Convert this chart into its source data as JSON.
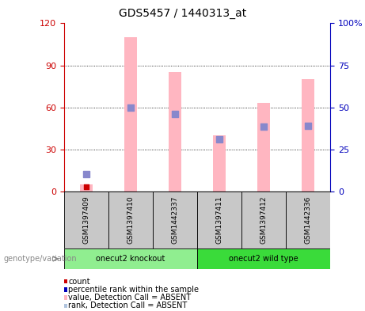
{
  "title": "GDS5457 / 1440313_at",
  "samples": [
    "GSM1397409",
    "GSM1397410",
    "GSM1442337",
    "GSM1397411",
    "GSM1397412",
    "GSM1442336"
  ],
  "pink_bars": [
    5,
    110,
    85,
    40,
    63,
    80
  ],
  "blue_squares": [
    12,
    60,
    55,
    37,
    46,
    47
  ],
  "red_dots": [
    3,
    0,
    0,
    0,
    0,
    0
  ],
  "groups": [
    {
      "label": "onecut2 knockout",
      "start": 0,
      "end": 2,
      "color": "#90EE90"
    },
    {
      "label": "onecut2 wild type",
      "start": 3,
      "end": 5,
      "color": "#3ADB3A"
    }
  ],
  "group_label": "genotype/variation",
  "ylim_left": [
    0,
    120
  ],
  "ylim_right": [
    0,
    100
  ],
  "yticks_left": [
    0,
    30,
    60,
    90,
    120
  ],
  "yticks_right": [
    0,
    25,
    50,
    75,
    100
  ],
  "ytick_labels_left": [
    "0",
    "30",
    "60",
    "90",
    "120"
  ],
  "ytick_labels_right": [
    "0",
    "25",
    "50",
    "75",
    "100%"
  ],
  "left_axis_color": "#CC0000",
  "right_axis_color": "#0000BB",
  "pink_color": "#FFB6C1",
  "blue_square_color": "#8888CC",
  "red_dot_color": "#CC0000",
  "sample_box_color": "#C8C8C8",
  "legend_items": [
    {
      "color": "#CC0000",
      "label": "count"
    },
    {
      "color": "#0000BB",
      "label": "percentile rank within the sample"
    },
    {
      "color": "#FFB6C1",
      "label": "value, Detection Call = ABSENT"
    },
    {
      "color": "#B0C4DE",
      "label": "rank, Detection Call = ABSENT"
    }
  ]
}
